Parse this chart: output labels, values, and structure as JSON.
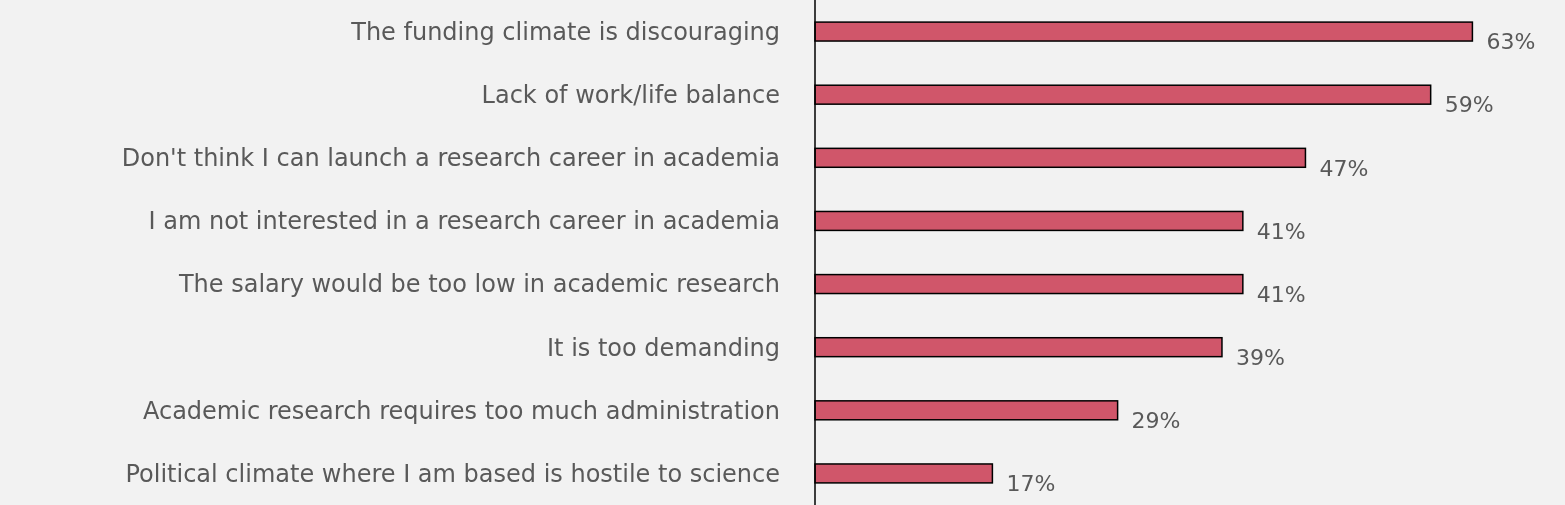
{
  "chart_data": {
    "type": "bar",
    "orientation": "horizontal",
    "categories": [
      "The funding climate is discouraging",
      "Lack of work/life balance",
      "Don't think I can launch a research career in academia",
      "I am not interested in a research career in academia",
      "The salary would be too low in academic research",
      "It is too demanding",
      "Academic research requires too much administration",
      "Political climate where I am based is hostile to science"
    ],
    "values": [
      63,
      59,
      47,
      41,
      41,
      39,
      29,
      17
    ],
    "value_labels": [
      "63%",
      "59%",
      "47%",
      "41%",
      "41%",
      "39%",
      "29%",
      "17%"
    ],
    "color": "#d0566a"
  }
}
